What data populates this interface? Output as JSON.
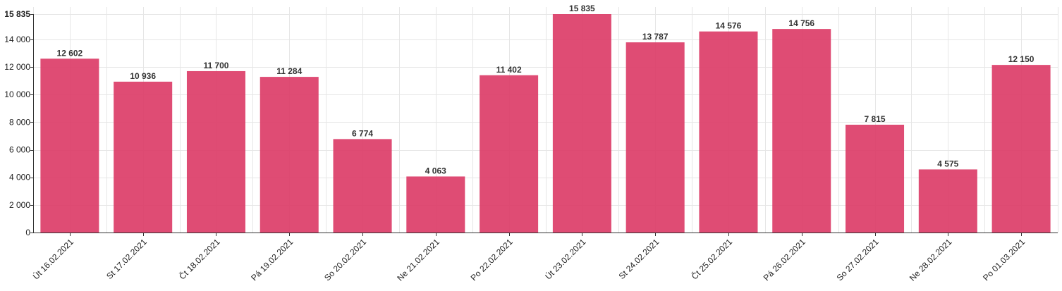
{
  "chart_data": {
    "type": "bar",
    "categories": [
      "Út 16.02.2021",
      "St 17.02.2021",
      "Čt 18.02.2021",
      "Pá 19.02.2021",
      "So 20.02.2021",
      "Ne 21.02.2021",
      "Po 22.02.2021",
      "Út 23.02.2021",
      "St 24.02.2021",
      "Čt 25.02.2021",
      "Pá 26.02.2021",
      "So 27.02.2021",
      "Ne 28.02.2021",
      "Po 01.03.2021"
    ],
    "values": [
      12602,
      10936,
      11700,
      11284,
      6774,
      4063,
      11402,
      15835,
      13787,
      14576,
      14756,
      7815,
      4575,
      12150
    ],
    "data_labels": [
      "12 602",
      "10 936",
      "11 700",
      "11 284",
      "6 774",
      "4 063",
      "11 402",
      "15 835",
      "13 787",
      "14 576",
      "14 756",
      "7 815",
      "4 575",
      "12 150"
    ],
    "y_ticks": [
      0,
      2000,
      4000,
      6000,
      8000,
      10000,
      12000,
      14000,
      15835
    ],
    "y_tick_labels": [
      "0",
      "2 000",
      "4 000",
      "6 000",
      "8 000",
      "10 000",
      "12 000",
      "14 000",
      "15 835"
    ],
    "ylim": [
      0,
      15835
    ],
    "grid": true,
    "legend": "none",
    "title": "",
    "xlabel": "",
    "ylabel": "",
    "bar_color": "#dc3d68"
  }
}
